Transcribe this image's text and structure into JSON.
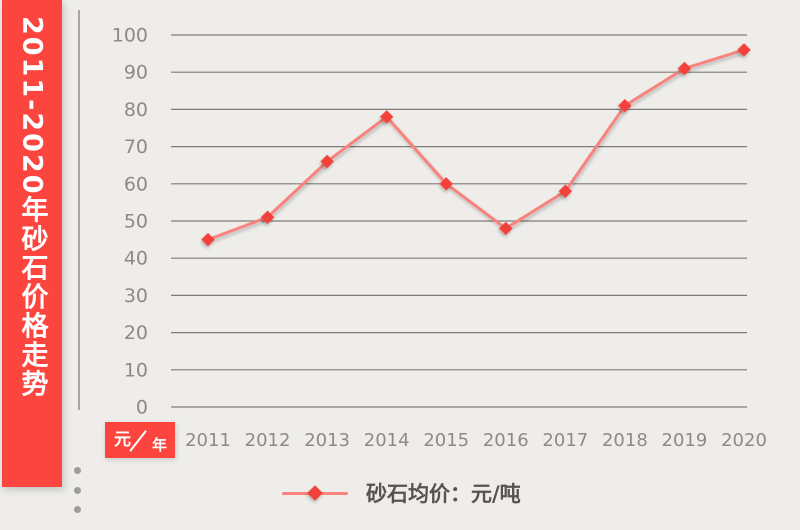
{
  "banner": {
    "title": "2011-2020年砂石价格走势"
  },
  "axis_unit_label": {
    "numerator": "元",
    "denominator": "年"
  },
  "legend": {
    "label": "砂石均价：元/吨"
  },
  "colors": {
    "banner_red": "#fb453e",
    "marker_red": "#f4413b",
    "line_pink": "#f9837c",
    "gridline_gray": "#7e7c79",
    "tick_label_gray": "#8d8a86",
    "legend_text_gray": "#57534e",
    "background": "#eeedea"
  },
  "chart_data": {
    "type": "line",
    "title": "2011-2020年砂石价格走势",
    "categories": [
      "2011",
      "2012",
      "2013",
      "2014",
      "2015",
      "2016",
      "2017",
      "2018",
      "2019",
      "2020"
    ],
    "series": [
      {
        "name": "砂石均价",
        "unit": "元/吨",
        "values": [
          45,
          51,
          66,
          78,
          60,
          48,
          58,
          81,
          91,
          96
        ]
      }
    ],
    "xlabel": "年",
    "ylabel": "元",
    "ylim": [
      0,
      100
    ],
    "ytick_step": 10,
    "grid": true,
    "legend_position": "bottom",
    "marker": "diamond"
  }
}
